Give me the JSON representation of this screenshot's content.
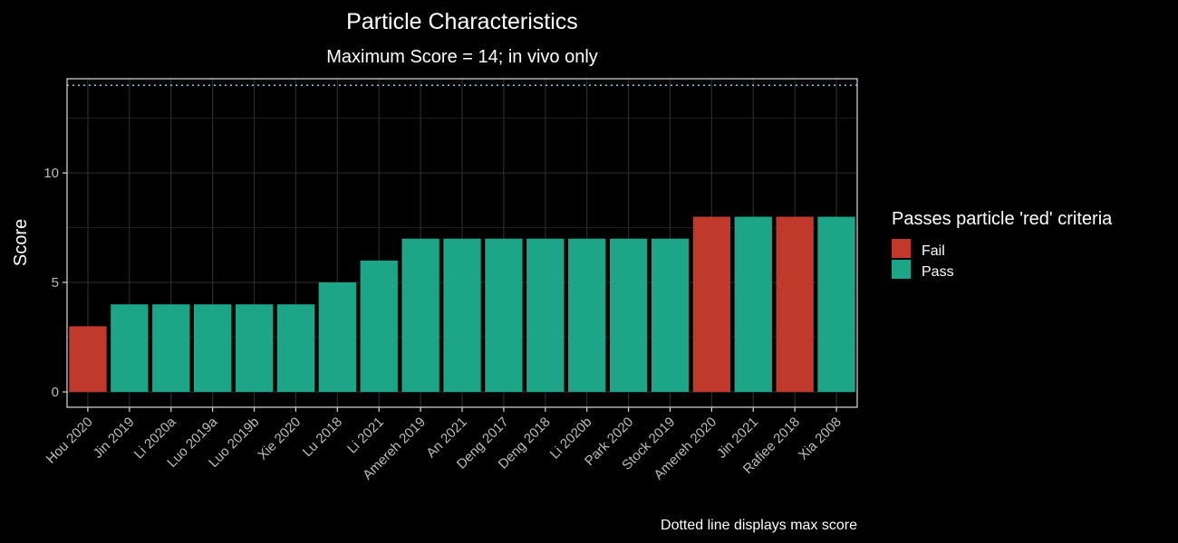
{
  "chart_data": {
    "type": "bar",
    "title": "Particle Characteristics",
    "subtitle": "Maximum Score = 14; in vivo only",
    "xlabel": "",
    "ylabel": "Score",
    "caption": "Dotted line displays max score",
    "ylim": [
      -0.7,
      14.3
    ],
    "yticks": [
      0,
      5,
      10
    ],
    "reference_line": 14,
    "categories": [
      "Hou 2020",
      "Jin 2019",
      "Li 2020a",
      "Luo 2019a",
      "Luo 2019b",
      "Xie 2020",
      "Lu 2018",
      "Li 2021",
      "Amereh 2019",
      "An 2021",
      "Deng 2017",
      "Deng 2018",
      "Li 2020b",
      "Park 2020",
      "Stock 2019",
      "Amereh 2020",
      "Jin 2021",
      "Rafiee 2018",
      "Xia 2008"
    ],
    "values": [
      3,
      4,
      4,
      4,
      4,
      4,
      5,
      6,
      7,
      7,
      7,
      7,
      7,
      7,
      7,
      8,
      8,
      8,
      8
    ],
    "groups": [
      "Fail",
      "Pass",
      "Pass",
      "Pass",
      "Pass",
      "Pass",
      "Pass",
      "Pass",
      "Pass",
      "Pass",
      "Pass",
      "Pass",
      "Pass",
      "Pass",
      "Pass",
      "Fail",
      "Pass",
      "Fail",
      "Pass"
    ],
    "legend": {
      "title": "Passes particle 'red' criteria",
      "position": "right",
      "entries": [
        {
          "label": "Fail",
          "color": "#C0392B"
        },
        {
          "label": "Pass",
          "color": "#1DA587"
        }
      ]
    },
    "grid": true,
    "colors": {
      "background": "#000000",
      "grid": "#2b2b2b",
      "axis": "#cccccc",
      "reference_line": "#7fd3e6"
    }
  }
}
